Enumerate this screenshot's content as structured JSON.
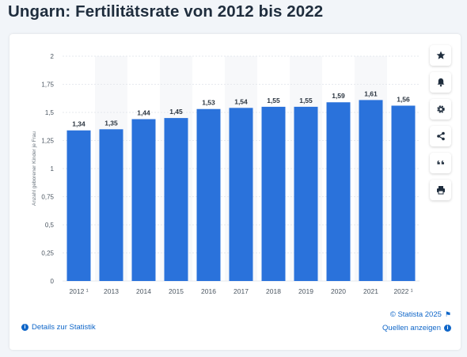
{
  "page": {
    "title": "Ungarn: Fertilitätsrate von 2012 bis 2022"
  },
  "side_buttons": [
    {
      "name": "favorite-star-icon"
    },
    {
      "name": "notification-bell-icon"
    },
    {
      "name": "settings-gear-icon"
    },
    {
      "name": "share-icon"
    },
    {
      "name": "cite-quote-icon"
    },
    {
      "name": "print-icon"
    }
  ],
  "footer": {
    "details_label": "Details zur Statistik",
    "copyright": "© Statista 2025",
    "sources_label": "Quellen anzeigen"
  },
  "colors": {
    "bar": "#2a72db",
    "accent": "#0f66c8"
  },
  "chart_data": {
    "type": "bar",
    "categories": [
      "2012",
      "2013",
      "2014",
      "2015",
      "2016",
      "2017",
      "2018",
      "2019",
      "2020",
      "2021",
      "2022"
    ],
    "category_footnote_marks": [
      "¹",
      "",
      "",
      "",
      "",
      "",
      "",
      "",
      "",
      "",
      "¹"
    ],
    "values": [
      1.34,
      1.35,
      1.44,
      1.45,
      1.53,
      1.54,
      1.55,
      1.55,
      1.59,
      1.61,
      1.56
    ],
    "data_labels": [
      "1,34",
      "1,35",
      "1,44",
      "1,45",
      "1,53",
      "1,54",
      "1,55",
      "1,55",
      "1,59",
      "1,61",
      "1,56"
    ],
    "ylabel": "Anzahl geborener Kinder je Frau",
    "ylim": [
      0,
      2
    ],
    "yticks": [
      0,
      0.25,
      0.5,
      0.75,
      1,
      1.25,
      1.5,
      1.75,
      2
    ],
    "ytick_labels": [
      "0",
      "0,25",
      "0,5",
      "0,75",
      "1",
      "1,25",
      "1,5",
      "1,75",
      "2"
    ],
    "grid": true,
    "legend": "none"
  }
}
